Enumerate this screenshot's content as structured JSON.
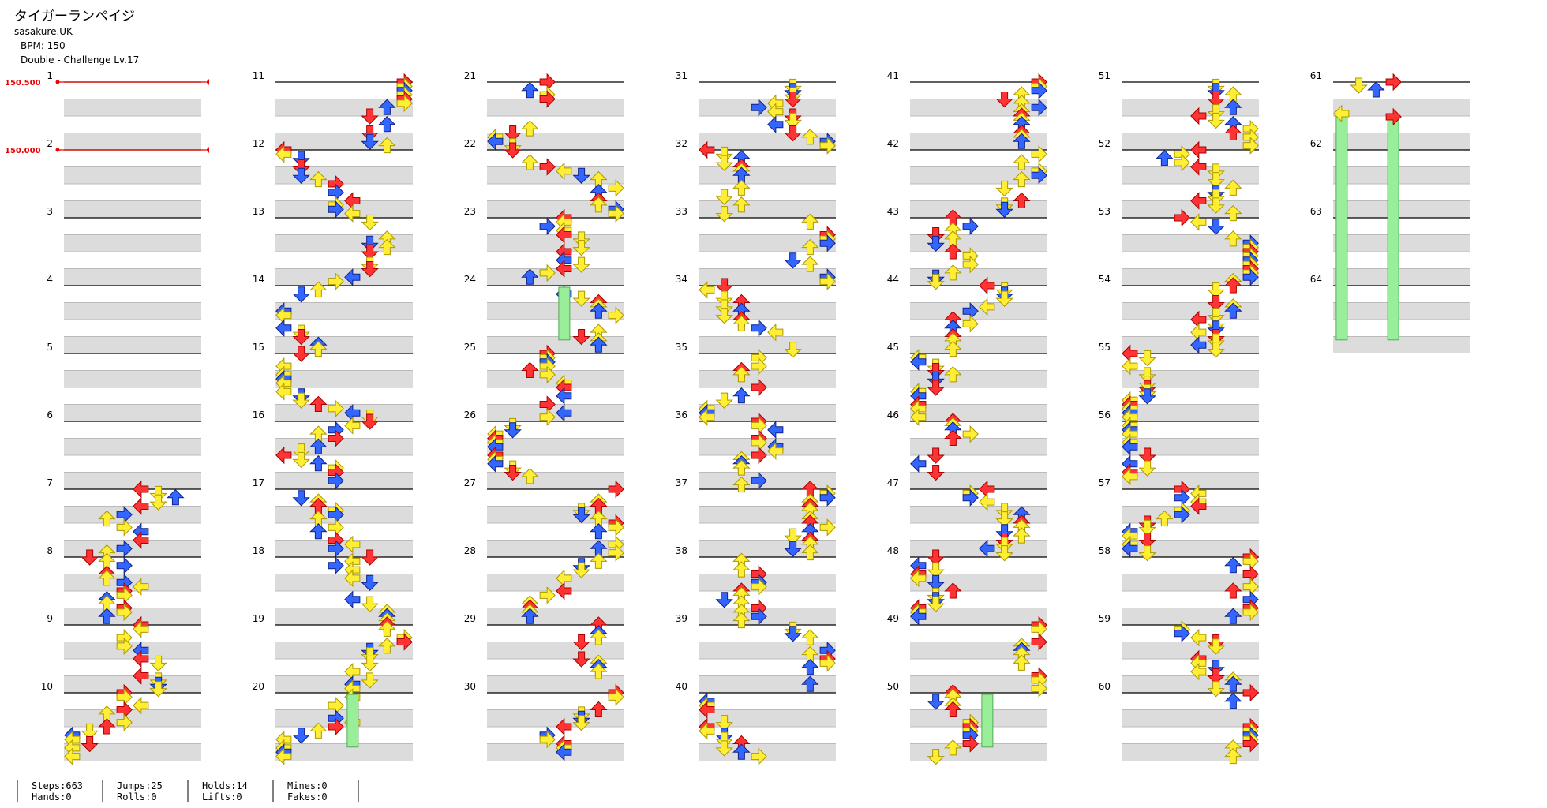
{
  "header": {
    "title": "タイガーランペイジ",
    "artist": "sasakure.UK",
    "bpm": "BPM: 150",
    "difficulty": "Double - Challenge Lv.17"
  },
  "measures": [
    1,
    2,
    3,
    4,
    5,
    6,
    7,
    8,
    9,
    10,
    11,
    12,
    13,
    14,
    15,
    16,
    17,
    18,
    19,
    20,
    21,
    22,
    23,
    24,
    25,
    26,
    27,
    28,
    29,
    30,
    31,
    32,
    33,
    34,
    35,
    36,
    37,
    38,
    39,
    40,
    41,
    42,
    43,
    44,
    45,
    46,
    47,
    48,
    49,
    50,
    51,
    52,
    53,
    54,
    55,
    56,
    57,
    58,
    59,
    60,
    61,
    62,
    63,
    64
  ],
  "bpm_changes": [
    {
      "label": "150.500",
      "measure": 1
    },
    {
      "label": "150.000",
      "measure": 2
    }
  ],
  "stats": [
    [
      "Steps:663",
      "Hands:0"
    ],
    [
      "Jumps:25",
      "Rolls:0"
    ],
    [
      "Holds:14",
      "Lifts:0"
    ],
    [
      "Mines:0",
      "Fakes:0"
    ]
  ]
}
